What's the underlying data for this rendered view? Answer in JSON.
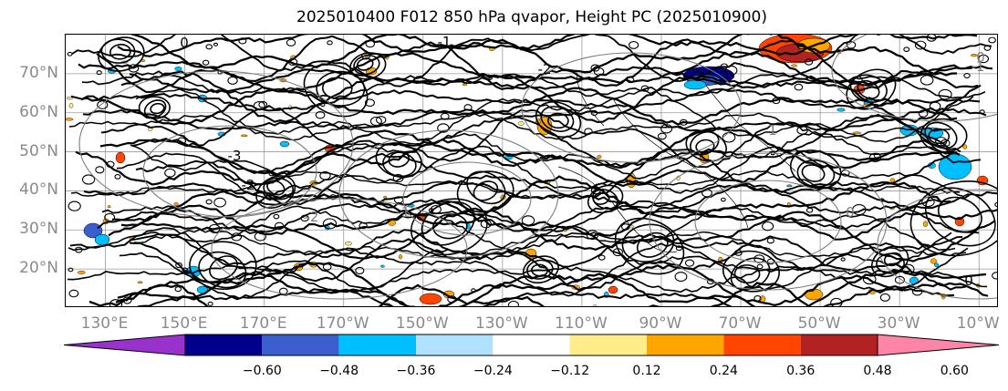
{
  "title": "2025010400 F012 850 hPa qvapor, Height PC (2025010900)",
  "lat_labels": [
    "70°N",
    "60°N",
    "50°N",
    "40°N",
    "30°N",
    "20°N"
  ],
  "lon_labels": [
    "130°E",
    "150°E",
    "170°E",
    "170°W",
    "150°W",
    "130°W",
    "110°W",
    "90°W",
    "70°W",
    "50°W",
    "30°W",
    "10°W"
  ],
  "map": {
    "projection": "plate-carree",
    "lon_range": [
      120,
      355
    ],
    "lat_range": [
      10,
      80
    ],
    "gridlines": true,
    "contour_labels": [
      "0",
      "-1",
      "0",
      "-2",
      "-3",
      "-2",
      "-1",
      "0",
      "0",
      "-1",
      "-2",
      "1"
    ]
  },
  "colorbar": {
    "ticks": [
      "−0.60",
      "−0.48",
      "−0.36",
      "−0.24",
      "−0.12",
      "0.12",
      "0.24",
      "0.36",
      "0.48",
      "0.60"
    ],
    "colors": [
      "#9932cc",
      "#00008b",
      "#3a5fcd",
      "#00bfff",
      "#b0e2ff",
      "#ffffff",
      "#ffec8b",
      "#ffa500",
      "#ff4500",
      "#b22222",
      "#ff85a8"
    ],
    "extend": "both"
  }
}
